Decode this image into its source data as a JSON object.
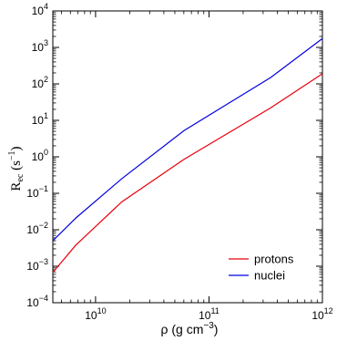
{
  "chart_data": {
    "type": "line",
    "title": "",
    "xlabel": "ρ (g cm⁻³)",
    "ylabel": "Rec (s⁻¹)",
    "xscale": "log",
    "yscale": "log",
    "xlim": [
      4200000000.0,
      1000000000000.0
    ],
    "ylim": [
      0.0001,
      10000.0
    ],
    "x_ticks": [
      {
        "value": 10000000000.0,
        "base": "10",
        "exp": "10"
      },
      {
        "value": 100000000000.0,
        "base": "10",
        "exp": "11"
      },
      {
        "value": 1000000000000.0,
        "base": "10",
        "exp": "12"
      }
    ],
    "y_ticks": [
      {
        "value": 0.0001,
        "base": "10",
        "exp": "−4"
      },
      {
        "value": 0.001,
        "base": "10",
        "exp": "−3"
      },
      {
        "value": 0.01,
        "base": "10",
        "exp": "−2"
      },
      {
        "value": 0.1,
        "base": "10",
        "exp": "−1"
      },
      {
        "value": 1.0,
        "base": "10",
        "exp": "0"
      },
      {
        "value": 10.0,
        "base": "10",
        "exp": "1"
      },
      {
        "value": 100.0,
        "base": "10",
        "exp": "2"
      },
      {
        "value": 1000.0,
        "base": "10",
        "exp": "3"
      },
      {
        "value": 10000.0,
        "base": "10",
        "exp": "4"
      }
    ],
    "legend_position": "bottom-right",
    "series": [
      {
        "name": "protons",
        "color": "#e8000b",
        "x": [
          4200000000.0,
          6700000000.0,
          17000000000.0,
          60000000000.0,
          350000000000.0,
          1000000000000.0
        ],
        "y": [
          0.00068,
          0.0038,
          0.058,
          0.85,
          22,
          190
        ]
      },
      {
        "name": "nuclei",
        "color": "#0000e0",
        "x": [
          4200000000.0,
          6700000000.0,
          17000000000.0,
          60000000000.0,
          350000000000.0,
          1000000000000.0
        ],
        "y": [
          0.005,
          0.021,
          0.25,
          5.2,
          150,
          1750
        ]
      }
    ]
  }
}
